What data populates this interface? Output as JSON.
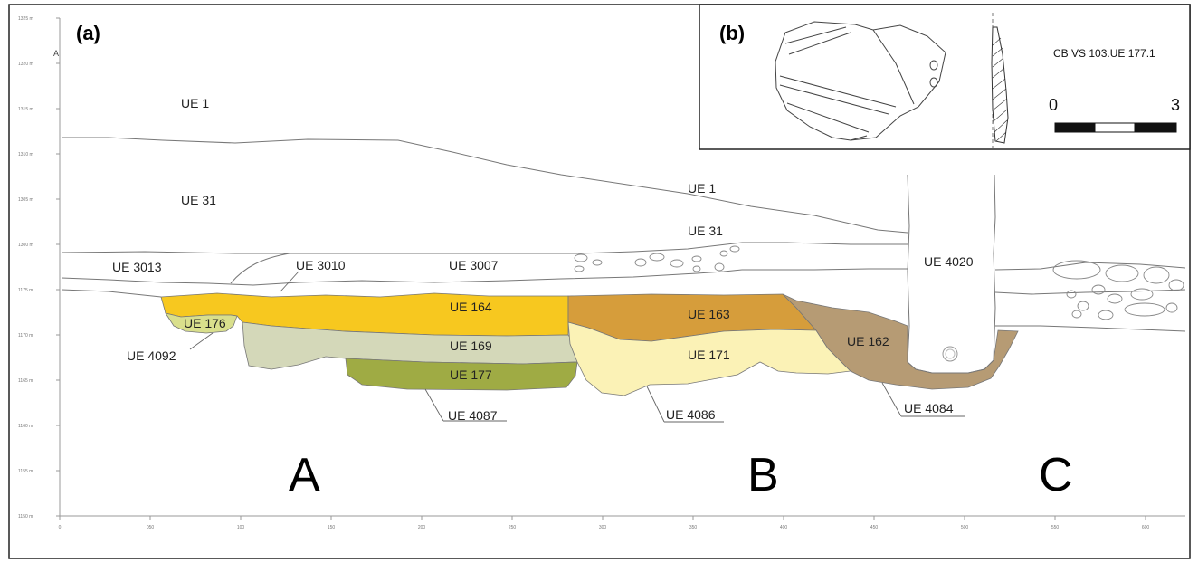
{
  "panels": {
    "a_label": "(a)",
    "b_label": "(b)"
  },
  "section_letter": "A",
  "ue_labels": {
    "ue1_top": "UE 1",
    "ue31_left": "UE 31",
    "ue1_mid": "UE 1",
    "ue31_mid": "UE 31",
    "ue3013": "UE 3013",
    "ue3010": "UE 3010",
    "ue3007": "UE 3007",
    "ue4020": "UE 4020",
    "ue164": "UE 164",
    "ue176": "UE 176",
    "ue4092": "UE 4092",
    "ue169": "UE 169",
    "ue177": "UE 177",
    "ue4087": "UE 4087",
    "ue163": "UE 163",
    "ue171": "UE 171",
    "ue4086": "UE 4086",
    "ue162": "UE 162",
    "ue4084": "UE 4084"
  },
  "zones": {
    "a": "A",
    "b": "B",
    "c": "C"
  },
  "inset": {
    "sample_id": "CB VS 103.UE 177.1",
    "scale_start": "0",
    "scale_end": "3"
  },
  "y_ticks": [
    "1325 m",
    "1320 m",
    "1315 m",
    "1310 m",
    "1305 m",
    "1300 m",
    "1175 m",
    "1170 m",
    "1165 m",
    "1160 m",
    "1155 m",
    "1150 m"
  ],
  "x_ticks": [
    "0",
    "050",
    "100",
    "150",
    "200",
    "250",
    "300",
    "350",
    "400",
    "450",
    "500",
    "550",
    "600"
  ],
  "fill_colors": {
    "ue164": "#f7c81f",
    "ue176": "#d9df8c",
    "ue169": "#d4d8b9",
    "ue177": "#9fab44",
    "ue163": "#d69d3b",
    "ue171": "#fbf2b6",
    "ue162": "#b69b74"
  }
}
